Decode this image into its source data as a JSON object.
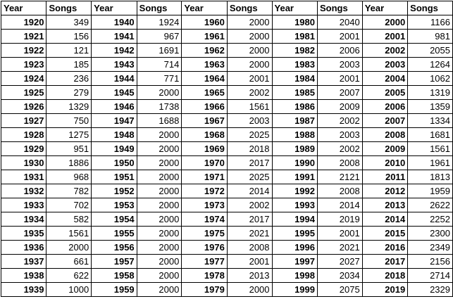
{
  "headers": [
    "Year",
    "Songs",
    "Year",
    "Songs",
    "Year",
    "Songs",
    "Year",
    "Songs",
    "Year",
    "Songs"
  ],
  "rows": [
    [
      "1920",
      "349",
      "1940",
      "1924",
      "1960",
      "2000",
      "1980",
      "2040",
      "2000",
      "1166"
    ],
    [
      "1921",
      "156",
      "1941",
      "967",
      "1961",
      "2000",
      "1981",
      "2001",
      "2001",
      "981"
    ],
    [
      "1922",
      "121",
      "1942",
      "1691",
      "1962",
      "2000",
      "1982",
      "2006",
      "2002",
      "2055"
    ],
    [
      "1923",
      "185",
      "1943",
      "714",
      "1963",
      "2000",
      "1983",
      "2003",
      "2003",
      "1264"
    ],
    [
      "1924",
      "236",
      "1944",
      "771",
      "1964",
      "2001",
      "1984",
      "2001",
      "2004",
      "1062"
    ],
    [
      "1925",
      "279",
      "1945",
      "2000",
      "1965",
      "2002",
      "1985",
      "2007",
      "2005",
      "1319"
    ],
    [
      "1926",
      "1329",
      "1946",
      "1738",
      "1966",
      "1561",
      "1986",
      "2009",
      "2006",
      "1359"
    ],
    [
      "1927",
      "750",
      "1947",
      "1688",
      "1967",
      "2003",
      "1987",
      "2002",
      "2007",
      "1334"
    ],
    [
      "1928",
      "1275",
      "1948",
      "2000",
      "1968",
      "2025",
      "1988",
      "2003",
      "2008",
      "1681"
    ],
    [
      "1929",
      "951",
      "1949",
      "2000",
      "1969",
      "2018",
      "1989",
      "2002",
      "2009",
      "1561"
    ],
    [
      "1930",
      "1886",
      "1950",
      "2000",
      "1970",
      "2017",
      "1990",
      "2008",
      "2010",
      "1961"
    ],
    [
      "1931",
      "968",
      "1951",
      "2000",
      "1971",
      "2025",
      "1991",
      "2121",
      "2011",
      "1813"
    ],
    [
      "1932",
      "782",
      "1952",
      "2000",
      "1972",
      "2014",
      "1992",
      "2008",
      "2012",
      "1959"
    ],
    [
      "1933",
      "702",
      "1953",
      "2000",
      "1973",
      "2002",
      "1993",
      "2014",
      "2013",
      "2622"
    ],
    [
      "1934",
      "582",
      "1954",
      "2000",
      "1974",
      "2017",
      "1994",
      "2019",
      "2014",
      "2252"
    ],
    [
      "1935",
      "1561",
      "1955",
      "2000",
      "1975",
      "2021",
      "1995",
      "2001",
      "2015",
      "2300"
    ],
    [
      "1936",
      "2000",
      "1956",
      "2000",
      "1976",
      "2008",
      "1996",
      "2021",
      "2016",
      "2349"
    ],
    [
      "1937",
      "661",
      "1957",
      "2000",
      "1977",
      "2001",
      "1997",
      "2027",
      "2017",
      "2156"
    ],
    [
      "1938",
      "622",
      "1958",
      "2000",
      "1978",
      "2013",
      "1998",
      "2034",
      "2018",
      "2714"
    ],
    [
      "1939",
      "1000",
      "1959",
      "2000",
      "1979",
      "2000",
      "1999",
      "2075",
      "2019",
      "2329"
    ]
  ]
}
